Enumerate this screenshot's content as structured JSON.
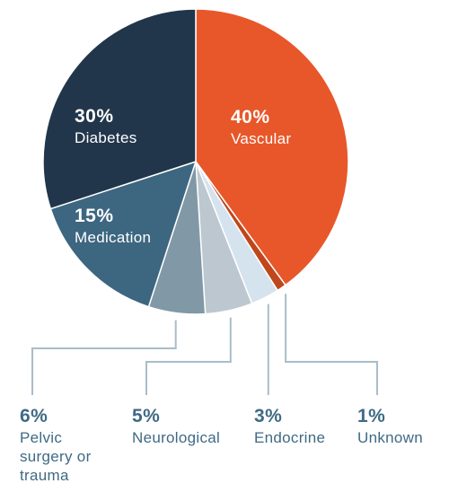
{
  "chart_data": {
    "type": "pie",
    "start": "12 o'clock",
    "direction": "clockwise",
    "slices": [
      {
        "label": "Vascular",
        "value": 40,
        "value_label": "40%",
        "color": "#e8572a",
        "label_position": "inside"
      },
      {
        "label": "Unknown",
        "value": 1,
        "value_label": "1%",
        "color": "#c0461c",
        "label_position": "outside"
      },
      {
        "label": "Endocrine",
        "value": 3,
        "value_label": "3%",
        "color": "#d5e3ee",
        "label_position": "outside"
      },
      {
        "label": "Neurological",
        "value": 5,
        "value_label": "5%",
        "color": "#bdc7d0",
        "label_position": "outside"
      },
      {
        "label": "Pelvic surgery or trauma",
        "label_lines": [
          "Pelvic",
          "surgery or",
          "trauma"
        ],
        "value": 6,
        "value_label": "6%",
        "color": "#8199a6",
        "label_position": "outside"
      },
      {
        "label": "Medication",
        "value": 15,
        "value_label": "15%",
        "color": "#3d6680",
        "label_position": "inside"
      },
      {
        "label": "Diabetes",
        "value": 30,
        "value_label": "30%",
        "color": "#22364b",
        "label_position": "inside"
      }
    ]
  },
  "colors": {
    "outside_text": "#3f6a84",
    "leader_lines": "#a9bcc9",
    "slice_border": "#ffffff"
  }
}
